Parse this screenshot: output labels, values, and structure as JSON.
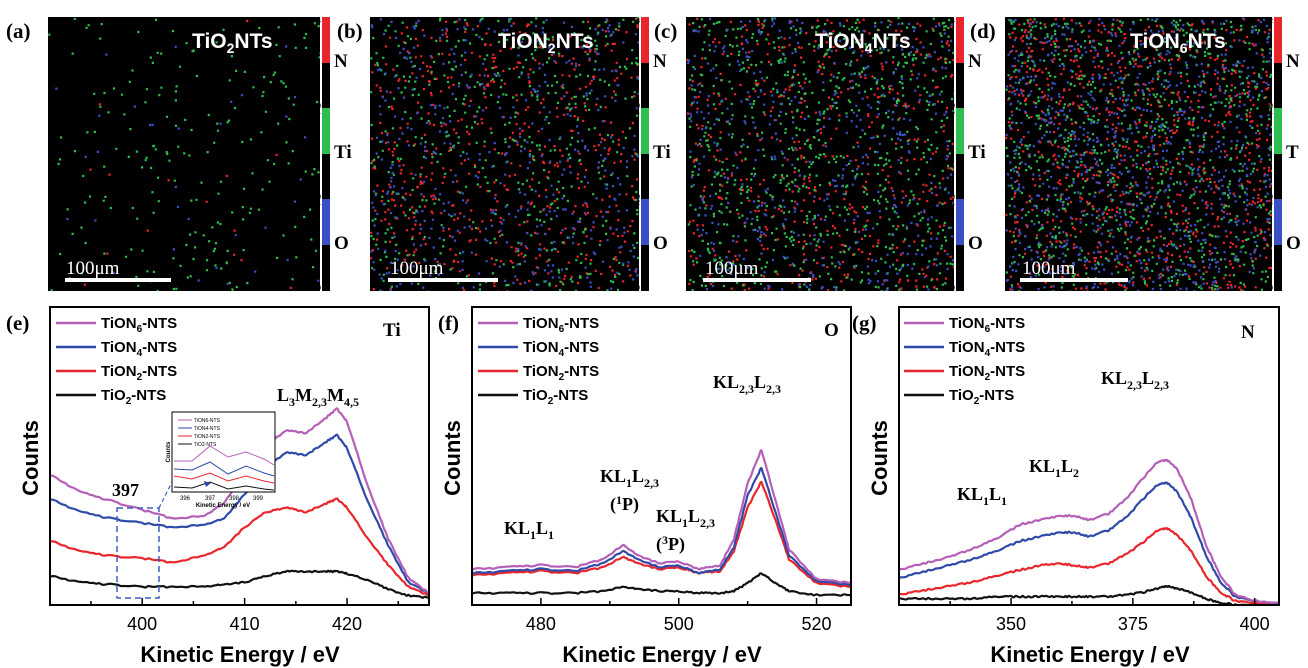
{
  "maps": [
    {
      "letter": "(a)",
      "title_pre": "TiO",
      "title_sub": "2",
      "title_post": "NTs",
      "scale_label": "100μm",
      "legend": [
        {
          "el": "N",
          "max": "4",
          "min": "0",
          "color": "#e8262b"
        },
        {
          "el": "Ti",
          "max": "1",
          "min": "0",
          "color": "#2ebd4f"
        },
        {
          "el": "O",
          "max": "1",
          "min": "0",
          "color": "#3b4fc4"
        }
      ]
    },
    {
      "letter": "(b)",
      "title_pre": "TiON",
      "title_sub": "2",
      "title_post": "NTs",
      "scale_label": "100μm",
      "legend": [
        {
          "el": "N",
          "max": "3",
          "min": "0",
          "color": "#e8262b"
        },
        {
          "el": "Ti",
          "max": "1",
          "min": "0",
          "color": "#2ebd4f"
        },
        {
          "el": "O",
          "max": "2",
          "min": "0",
          "color": "#3b4fc4"
        }
      ]
    },
    {
      "letter": "(c)",
      "title_pre": "TiON",
      "title_sub": "4",
      "title_post": "NTs",
      "scale_label": "100μm",
      "legend": [
        {
          "el": "N",
          "max": "4",
          "min": "0",
          "color": "#e8262b"
        },
        {
          "el": "Ti",
          "max": "4",
          "min": "0",
          "color": "#2ebd4f"
        },
        {
          "el": "O",
          "max": "1",
          "min": "0",
          "color": "#3b4fc4"
        }
      ]
    },
    {
      "letter": "(d)",
      "title_pre": "TiON",
      "title_sub": "6",
      "title_post": "NTs",
      "scale_label": "100μm",
      "legend": [
        {
          "el": "N",
          "max": "2",
          "min": "0",
          "color": "#e8262b"
        },
        {
          "el": "T",
          "max": "1",
          "min": "0",
          "color": "#2ebd4f"
        },
        {
          "el": "O",
          "max": "4",
          "min": "0",
          "color": "#3b4fc4"
        }
      ]
    }
  ],
  "chart_data": [
    {
      "type": "line",
      "letter": "(e)",
      "element_label": "Ti",
      "xlabel": "Kinetic Energy / eV",
      "ylabel": "Counts",
      "xlim": [
        391,
        428
      ],
      "ylim": [
        0,
        100
      ],
      "xticks": [
        400,
        410,
        420
      ],
      "legend_position": "top-left",
      "series": [
        {
          "name": "TiON6-NTS",
          "name_pre": "TiON",
          "name_sub": "6",
          "name_post": "-NTS",
          "color": "#b55fb8",
          "x": [
            391,
            394,
            397,
            400,
            403,
            406,
            408,
            410,
            412,
            414,
            416,
            418,
            419,
            420,
            422,
            424,
            426,
            428
          ],
          "y": [
            57,
            49,
            45,
            41,
            37,
            38,
            44,
            58,
            70,
            77,
            76,
            83,
            87,
            81,
            52,
            28,
            10,
            3
          ]
        },
        {
          "name": "TiON4-NTS",
          "name_pre": "TiON",
          "name_sub": "4",
          "name_post": "-NTS",
          "color": "#2f4aa8",
          "x": [
            391,
            394,
            397,
            400,
            403,
            406,
            408,
            410,
            412,
            414,
            416,
            418,
            419,
            420,
            422,
            424,
            426,
            428
          ],
          "y": [
            46,
            40,
            37,
            35,
            33,
            34,
            37,
            48,
            60,
            67,
            66,
            72,
            75,
            69,
            45,
            25,
            8,
            3
          ]
        },
        {
          "name": "TiON2-NTS",
          "name_pre": "TiON",
          "name_sub": "2",
          "name_post": "-NTS",
          "color": "#e8262b",
          "x": [
            391,
            394,
            397,
            400,
            403,
            406,
            408,
            410,
            412,
            414,
            416,
            418,
            419,
            420,
            422,
            424,
            426,
            428
          ],
          "y": [
            27,
            22,
            20,
            19,
            17,
            20,
            24,
            33,
            40,
            42,
            40,
            44,
            46,
            42,
            28,
            16,
            6,
            2
          ]
        },
        {
          "name": "TiO2-NTS",
          "name_pre": "TiO",
          "name_sub": "2",
          "name_post": "-NTS",
          "color": "#111111",
          "x": [
            391,
            394,
            397,
            400,
            403,
            406,
            408,
            410,
            412,
            414,
            416,
            418,
            419,
            420,
            422,
            424,
            426,
            428
          ],
          "y": [
            11,
            8,
            7,
            6,
            6,
            6,
            7,
            8,
            11,
            13,
            13,
            13,
            13,
            12,
            9,
            5,
            2,
            1
          ]
        }
      ],
      "annotations": {
        "peak_pre": "L",
        "peak_s1": "3",
        "peak_mid": "M",
        "peak_s2": "2,3",
        "peak_mid2": "M",
        "peak_s3": "4,5",
        "box_label": "397"
      },
      "inset": {
        "xlabel": "Kinetic Energy / eV",
        "ylabel": "Counts",
        "xticks": [
          "396",
          "397",
          "398",
          "399"
        ],
        "legend": [
          "TiON6-NTS",
          "TiON4-NTS",
          "TiON2-NTS",
          "TiO2-NTS"
        ]
      }
    },
    {
      "type": "line",
      "letter": "(f)",
      "element_label": "O",
      "xlabel": "Kinetic Energy / eV",
      "ylabel": "Counts",
      "xlim": [
        470,
        525
      ],
      "ylim": [
        0,
        100
      ],
      "xticks": [
        480,
        500,
        520
      ],
      "legend_position": "top-left",
      "series": [
        {
          "name": "TiON6-NTS",
          "name_pre": "TiON",
          "name_sub": "6",
          "name_post": "-NTS",
          "color": "#b55fb8",
          "x": [
            470,
            475,
            480,
            485,
            489,
            492,
            494,
            497,
            500,
            503,
            506,
            508,
            510,
            512,
            514,
            516,
            520,
            525
          ],
          "y": [
            15,
            16,
            17,
            16,
            20,
            27,
            22,
            18,
            19,
            15,
            17,
            30,
            58,
            75,
            50,
            25,
            10,
            8
          ]
        },
        {
          "name": "TiON4-NTS",
          "name_pre": "TiON",
          "name_sub": "4",
          "name_post": "-NTS",
          "color": "#2f4aa8",
          "x": [
            470,
            475,
            480,
            485,
            489,
            492,
            494,
            497,
            500,
            503,
            506,
            508,
            510,
            512,
            514,
            516,
            520,
            525
          ],
          "y": [
            13,
            14,
            15,
            14,
            18,
            24,
            20,
            16,
            17,
            13,
            15,
            26,
            52,
            66,
            44,
            22,
            9,
            7
          ]
        },
        {
          "name": "TiON2-NTS",
          "name_pre": "TiON",
          "name_sub": "2",
          "name_post": "-NTS",
          "color": "#e8262b",
          "x": [
            470,
            475,
            480,
            485,
            489,
            492,
            494,
            497,
            500,
            503,
            506,
            508,
            510,
            512,
            514,
            516,
            520,
            525
          ],
          "y": [
            12,
            13,
            14,
            13,
            16,
            21,
            18,
            15,
            16,
            13,
            14,
            24,
            46,
            59,
            40,
            20,
            8,
            6
          ]
        },
        {
          "name": "TiO2-NTS",
          "name_pre": "TiO",
          "name_sub": "2",
          "name_post": "-NTS",
          "color": "#111111",
          "x": [
            470,
            475,
            480,
            485,
            489,
            492,
            494,
            497,
            500,
            503,
            506,
            508,
            510,
            512,
            514,
            516,
            520,
            525
          ],
          "y": [
            3,
            3,
            3,
            3,
            4,
            6,
            5,
            4,
            4,
            3,
            3,
            4,
            8,
            13,
            8,
            4,
            2,
            2
          ]
        }
      ],
      "annotations": {
        "kl1l1_pre": "KL",
        "kl1l1_s1": "1",
        "kl1l1_mid": "L",
        "kl1l1_s2": "1",
        "p1_pre": "KL",
        "p1_s1": "1",
        "p1_mid": "L",
        "p1_s2": "2,3",
        "p1_term_pre": "(",
        "p1_term_sup": "1",
        "p1_term_post": "P)",
        "p3_pre": "KL",
        "p3_s1": "1",
        "p3_mid": "L",
        "p3_s2": "2,3",
        "p3_term_pre": "(",
        "p3_term_sup": "3",
        "p3_term_post": "P)",
        "main_pre": "KL",
        "main_s1": "2,3",
        "main_mid": "L",
        "main_s2": "2,3"
      }
    },
    {
      "type": "line",
      "letter": "(g)",
      "element_label": "N",
      "xlabel": "Kinetic Energy / eV",
      "ylabel": "Counts",
      "xlim": [
        327,
        405
      ],
      "ylim": [
        0,
        100
      ],
      "xticks": [
        350,
        375,
        400
      ],
      "legend_position": "top-left",
      "series": [
        {
          "name": "TiON6-NTS",
          "name_pre": "TiON",
          "name_sub": "6",
          "name_post": "-NTS",
          "color": "#b55fb8",
          "x": [
            327,
            332,
            337,
            342,
            347,
            352,
            356,
            360,
            363,
            366,
            370,
            374,
            377,
            380,
            382,
            384,
            387,
            390,
            393,
            396,
            400,
            405
          ],
          "y": [
            18,
            21,
            24,
            28,
            33,
            40,
            42,
            44,
            44,
            42,
            45,
            53,
            62,
            70,
            71,
            67,
            52,
            30,
            15,
            6,
            3,
            2
          ]
        },
        {
          "name": "TiON4-NTS",
          "name_pre": "TiON",
          "name_sub": "4",
          "name_post": "-NTS",
          "color": "#2f4aa8",
          "x": [
            327,
            332,
            337,
            342,
            347,
            352,
            356,
            360,
            363,
            366,
            370,
            374,
            377,
            380,
            382,
            384,
            387,
            390,
            393,
            396,
            400,
            405
          ],
          "y": [
            14,
            17,
            20,
            23,
            27,
            32,
            34,
            36,
            36,
            34,
            37,
            44,
            52,
            59,
            60,
            56,
            43,
            25,
            12,
            5,
            3,
            2
          ]
        },
        {
          "name": "TiON2-NTS",
          "name_pre": "TiON",
          "name_sub": "2",
          "name_post": "-NTS",
          "color": "#e8262b",
          "x": [
            327,
            332,
            337,
            342,
            347,
            352,
            356,
            360,
            363,
            366,
            370,
            374,
            377,
            380,
            382,
            384,
            387,
            390,
            393,
            396,
            400,
            405
          ],
          "y": [
            6,
            8,
            10,
            12,
            15,
            18,
            20,
            21,
            20,
            19,
            21,
            26,
            31,
            37,
            38,
            35,
            27,
            15,
            7,
            3,
            2,
            1
          ]
        },
        {
          "name": "TiO2-NTS",
          "name_pre": "TiO",
          "name_sub": "2",
          "name_post": "-NTS",
          "color": "#111111",
          "x": [
            327,
            332,
            337,
            342,
            347,
            352,
            356,
            360,
            363,
            366,
            370,
            374,
            377,
            380,
            382,
            384,
            387,
            390,
            393,
            396,
            400,
            405
          ],
          "y": [
            4,
            4,
            4,
            4,
            5,
            5,
            5,
            5,
            5,
            5,
            5,
            6,
            7,
            9,
            10,
            9,
            7,
            4,
            2,
            1,
            1,
            1
          ]
        }
      ],
      "annotations": {
        "kl1l1_pre": "KL",
        "kl1l1_s1": "1",
        "kl1l1_mid": "L",
        "kl1l1_s2": "1",
        "kl1l2_pre": "KL",
        "kl1l2_s1": "1",
        "kl1l2_mid": "L",
        "kl1l2_s2": "2",
        "main_pre": "KL",
        "main_s1": "2,3",
        "main_mid": "L",
        "main_s2": "2,3"
      }
    }
  ]
}
